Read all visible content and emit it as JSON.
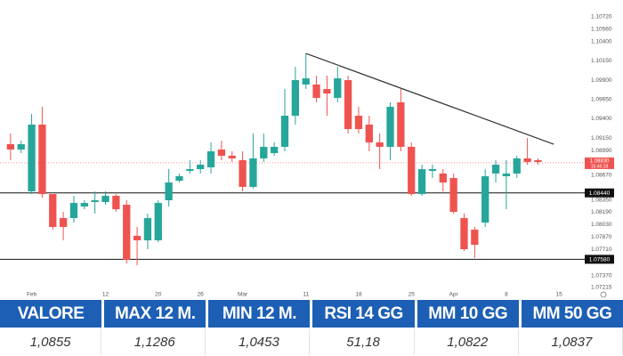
{
  "chart_data": {
    "type": "candlestick",
    "candles": {
      "open": [
        1.09071,
        1.09002,
        1.0846,
        1.09325,
        1.08425,
        1.08114,
        1.08114,
        1.08264,
        1.08322,
        1.08322,
        1.08402,
        1.08287,
        1.07884,
        1.07826,
        1.07826,
        1.08345,
        1.08598,
        1.08725,
        1.08748,
        1.08771,
        1.09002,
        1.08921,
        1.08864,
        1.08518,
        1.08887,
        1.08956,
        1.09037,
        1.0944,
        1.09844,
        1.09844,
        1.09786,
        1.09671,
        1.09901,
        1.0944,
        1.09325,
        1.09094,
        1.09037,
        1.09613,
        1.09037,
        1.08425,
        1.08725,
        1.08691,
        1.08633,
        1.08114,
        1.07964,
        1.08056,
        1.08691,
        1.08656,
        1.08691,
        1.08887,
        1.08864
      ],
      "high": [
        1.09209,
        1.09117,
        1.09463,
        1.09555,
        1.08425,
        1.08195,
        1.08402,
        1.08345,
        1.0846,
        1.0846,
        1.08425,
        1.08345,
        1.07999,
        1.08172,
        1.08345,
        1.08748,
        1.08691,
        1.08864,
        1.08864,
        1.09094,
        1.09117,
        1.08979,
        1.08979,
        1.09209,
        1.09209,
        1.09094,
        1.09786,
        1.10074,
        1.10247,
        1.09959,
        1.09959,
        1.10074,
        1.09959,
        1.09555,
        1.0944,
        1.09209,
        1.09613,
        1.09786,
        1.09094,
        1.08806,
        1.08806,
        1.08748,
        1.08691,
        1.08172,
        1.07999,
        1.08748,
        1.08864,
        1.08864,
        1.08921,
        1.09152,
        1.08887
      ],
      "low": [
        1.08864,
        1.08956,
        1.08425,
        1.08379,
        1.07964,
        1.07826,
        1.08056,
        1.08229,
        1.08172,
        1.08287,
        1.08195,
        1.07526,
        1.07503,
        1.07711,
        1.07803,
        1.08264,
        1.08575,
        1.08691,
        1.08691,
        1.08691,
        1.08864,
        1.08841,
        1.0846,
        1.08495,
        1.08841,
        1.08921,
        1.08979,
        1.09325,
        1.09786,
        1.09613,
        1.0944,
        1.09613,
        1.09209,
        1.09209,
        1.08979,
        1.08748,
        1.08864,
        1.08979,
        1.08402,
        1.08402,
        1.08633,
        1.0846,
        1.08172,
        1.07688,
        1.07595,
        1.07999,
        1.08575,
        1.08229,
        1.08633,
        1.08806,
        1.08806
      ],
      "close": [
        1.09002,
        1.09071,
        1.09325,
        1.08425,
        1.07999,
        1.07999,
        1.0831,
        1.0831,
        1.08345,
        1.08402,
        1.08229,
        1.07572,
        1.07826,
        1.08114,
        1.0831,
        1.08575,
        1.08656,
        1.08748,
        1.08806,
        1.08979,
        1.08921,
        1.08887,
        1.08518,
        1.08887,
        1.09037,
        1.09037,
        1.0944,
        1.09901,
        1.09924,
        1.09671,
        1.09728,
        1.09924,
        1.09267,
        1.09267,
        1.09094,
        1.09037,
        1.09555,
        1.09037,
        1.08425,
        1.08748,
        1.08748,
        1.08575,
        1.08195,
        1.07711,
        1.07768,
        1.08656,
        1.08806,
        1.08691,
        1.08887,
        1.08841,
        1.08841
      ]
    },
    "up_color": "#26a69a",
    "down_color": "#ef5350",
    "xlim": [
      -1,
      53
    ],
    "xticks": [
      {
        "value": 2,
        "label": "Feb"
      },
      {
        "value": 9,
        "label": "12"
      },
      {
        "value": 14,
        "label": "20"
      },
      {
        "value": 18,
        "label": "26"
      },
      {
        "value": 22,
        "label": "Mar"
      },
      {
        "value": 28,
        "label": "11"
      },
      {
        "value": 33,
        "label": "18"
      },
      {
        "value": 38,
        "label": "25"
      },
      {
        "value": 42,
        "label": "Apr"
      },
      {
        "value": 47,
        "label": "8"
      },
      {
        "value": 52,
        "label": "15"
      }
    ],
    "ylim": [
      1.07169,
      1.10939
    ],
    "yticks": [
      {
        "value": 1.1072,
        "label": "1.10720"
      },
      {
        "value": 1.1056,
        "label": "1.10560"
      },
      {
        "value": 1.104,
        "label": "1.10400"
      },
      {
        "value": 1.1015,
        "label": "1.10150"
      },
      {
        "value": 1.099,
        "label": "1.09900"
      },
      {
        "value": 1.0965,
        "label": "1.09650"
      },
      {
        "value": 1.094,
        "label": "1.09400"
      },
      {
        "value": 1.0915,
        "label": "1.09150"
      },
      {
        "value": 1.0899,
        "label": "1.08990"
      },
      {
        "value": 1.0867,
        "label": "1.08670"
      },
      {
        "value": 1.0835,
        "label": "1.08350"
      },
      {
        "value": 1.0819,
        "label": "1.08190"
      },
      {
        "value": 1.0803,
        "label": "1.08030"
      },
      {
        "value": 1.0787,
        "label": "1.07870"
      },
      {
        "value": 1.0771,
        "label": "1.07710"
      },
      {
        "value": 1.0737,
        "label": "1.07370"
      },
      {
        "value": 1.07215,
        "label": "1.07215"
      }
    ],
    "levels": [
      {
        "value": 1.0844,
        "label": "1.08440"
      },
      {
        "value": 1.0758,
        "label": "1.07580"
      }
    ],
    "trendline": {
      "x": [
        28,
        51.5
      ],
      "y": [
        1.10247,
        1.09071
      ]
    },
    "current_price": {
      "value": 1.0883,
      "label": "1.08830",
      "countdown": "15:46:18"
    },
    "grid": false
  },
  "table": {
    "headers": [
      "VALORE",
      "MAX 12 M.",
      "MIN 12 M.",
      "RSI 14 GG",
      "MM 10 GG",
      "MM 50 GG"
    ],
    "values": [
      "1,0855",
      "1,1286",
      "1,0453",
      "51,18",
      "1,0822",
      "1,0837"
    ]
  }
}
